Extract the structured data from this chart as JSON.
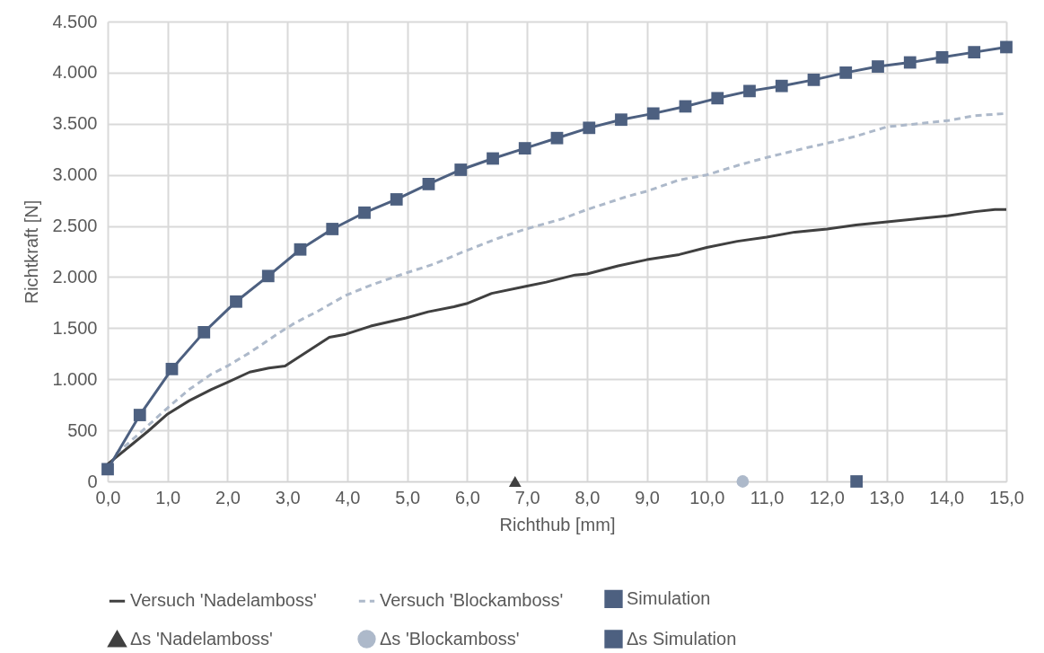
{
  "chart_data": {
    "type": "line",
    "xlabel": "Richthub [mm]",
    "ylabel": "Richtkraft [N]",
    "xlim": [
      0,
      15
    ],
    "ylim": [
      0,
      4500
    ],
    "xticks": [
      {
        "value": 0,
        "label": "0,0"
      },
      {
        "value": 1,
        "label": "1,0"
      },
      {
        "value": 2,
        "label": "2,0"
      },
      {
        "value": 3,
        "label": "3,0"
      },
      {
        "value": 4,
        "label": "4,0"
      },
      {
        "value": 5,
        "label": "5,0"
      },
      {
        "value": 6,
        "label": "6,0"
      },
      {
        "value": 7,
        "label": "7,0"
      },
      {
        "value": 8,
        "label": "8,0"
      },
      {
        "value": 9,
        "label": "9,0"
      },
      {
        "value": 10,
        "label": "10,0"
      },
      {
        "value": 11,
        "label": "11,0"
      },
      {
        "value": 12,
        "label": "12,0"
      },
      {
        "value": 13,
        "label": "13,0"
      },
      {
        "value": 14,
        "label": "14,0"
      },
      {
        "value": 15,
        "label": "15,0"
      }
    ],
    "yticks": [
      0,
      500,
      {
        "value": 1000,
        "label": "1.000"
      },
      {
        "value": 1500,
        "label": "1.500"
      },
      {
        "value": 2000,
        "label": "2.000"
      },
      {
        "value": 2500,
        "label": "2.500"
      },
      {
        "value": 3000,
        "label": "3.000"
      },
      {
        "value": 3500,
        "label": "3.500"
      },
      {
        "value": 4000,
        "label": "4.000"
      },
      {
        "value": 4500,
        "label": "4.500"
      }
    ],
    "grid": true,
    "legend": "bottom",
    "series": [
      {
        "name": "Versuch 'Nadelamboss'",
        "type": "line",
        "color": "#404040",
        "marker": "none",
        "line_style": "solid",
        "x": [
          0,
          0.4,
          0.67,
          1.0,
          1.36,
          1.73,
          2.0,
          2.37,
          2.69,
          2.96,
          3.33,
          3.7,
          3.97,
          4.39,
          4.98,
          5.35,
          5.78,
          5.99,
          6.41,
          6.98,
          7.32,
          7.8,
          8.0,
          8.52,
          9.0,
          9.54,
          10.0,
          10.51,
          11.0,
          11.47,
          12.01,
          12.49,
          13.01,
          13.52,
          14.02,
          14.48,
          14.81,
          15.0
        ],
        "values": [
          170,
          360,
          490,
          660,
          790,
          900,
          970,
          1070,
          1110,
          1130,
          1270,
          1410,
          1440,
          1520,
          1600,
          1660,
          1710,
          1740,
          1840,
          1910,
          1950,
          2020,
          2030,
          2110,
          2170,
          2220,
          2290,
          2350,
          2390,
          2440,
          2470,
          2510,
          2540,
          2570,
          2600,
          2640,
          2660,
          2660
        ]
      },
      {
        "name": "Versuch 'Blockamboss'",
        "type": "line",
        "color": "#adb9ca",
        "marker": "none",
        "line_style": "dashed",
        "x": [
          0.14,
          0.51,
          1.0,
          1.36,
          1.73,
          2.0,
          2.37,
          2.8,
          3.12,
          3.49,
          3.97,
          4.39,
          4.93,
          5.46,
          5.99,
          6.52,
          6.98,
          7.59,
          8.0,
          8.68,
          9.0,
          9.54,
          10.0,
          10.56,
          11.0,
          11.63,
          12.01,
          12.44,
          13.01,
          13.52,
          14.02,
          14.48,
          15.0
        ],
        "values": [
          270,
          460,
          720,
          900,
          1050,
          1130,
          1260,
          1430,
          1550,
          1660,
          1820,
          1920,
          2030,
          2130,
          2260,
          2380,
          2470,
          2570,
          2660,
          2790,
          2840,
          2950,
          3000,
          3100,
          3170,
          3260,
          3310,
          3370,
          3470,
          3500,
          3530,
          3580,
          3600
        ]
      },
      {
        "name": "Simulation",
        "type": "line",
        "color": "#4d6080",
        "marker": "square",
        "line_style": "solid",
        "x": [
          0,
          0.536,
          1.071,
          1.607,
          2.143,
          2.679,
          3.214,
          3.75,
          4.286,
          4.821,
          5.357,
          5.893,
          6.429,
          6.964,
          7.5,
          8.036,
          8.571,
          9.107,
          9.643,
          10.179,
          10.714,
          11.25,
          11.786,
          12.321,
          12.857,
          13.393,
          13.929,
          14.464,
          15.0
        ],
        "values": [
          120,
          650,
          1100,
          1460,
          1760,
          2010,
          2270,
          2470,
          2630,
          2760,
          2910,
          3050,
          3160,
          3260,
          3360,
          3460,
          3540,
          3600,
          3670,
          3750,
          3820,
          3870,
          3930,
          4000,
          4060,
          4100,
          4150,
          4200,
          4250
        ]
      },
      {
        "name": "Δs 'Nadelamboss'",
        "type": "scatter",
        "color": "#404040",
        "marker": "triangle",
        "x": [
          6.8
        ],
        "values": [
          0
        ]
      },
      {
        "name": "Δs 'Blockamboss'",
        "type": "scatter",
        "color": "#adb9ca",
        "marker": "circle",
        "x": [
          10.6
        ],
        "values": [
          0
        ]
      },
      {
        "name": "Δs Simulation",
        "type": "scatter",
        "color": "#4d6080",
        "marker": "square",
        "x": [
          12.5
        ],
        "values": [
          0
        ]
      }
    ]
  }
}
